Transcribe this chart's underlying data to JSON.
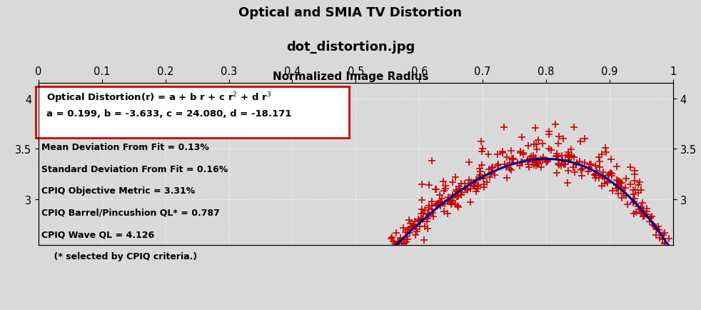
{
  "title_line1": "Optical and SMIA TV Distortion",
  "title_line2": "dot_distortion.jpg",
  "xlabel": "Normalized Image Radius",
  "xlim": [
    0,
    1
  ],
  "ylim": [
    2.55,
    4.15
  ],
  "xticks": [
    0,
    0.1,
    0.2,
    0.3,
    0.4,
    0.5,
    0.6,
    0.7,
    0.8,
    0.9,
    1
  ],
  "yticks_left": [
    3,
    3.5,
    4
  ],
  "yticks_right": [
    3,
    3.5,
    4
  ],
  "bg_color": "#d9d9d9",
  "plot_bg_color": "#d9d9d9",
  "formula_line1": "Optical Distortion(r) = a + b r + c r$^2$ + d r$^3$",
  "formula_line2": "a = 0.199, b = -3.633, c = 24.080, d = -18.171",
  "stats_text": [
    "Mean Deviation From Fit = 0.13%",
    "Standard Deviation From Fit = 0.16%",
    "CPIQ Objective Metric = 3.31%",
    "CPIQ Barrel/Pincushion QL* = 0.787",
    "CPIQ Wave QL = 4.126",
    "    (* selected by CPIQ criteria.)"
  ],
  "curve_color": "#00008b",
  "scatter_color": "#cc0000",
  "grid_color": "#bbbbbb",
  "a": 0.199,
  "b": -3.633,
  "c": 24.08,
  "d": -18.171
}
